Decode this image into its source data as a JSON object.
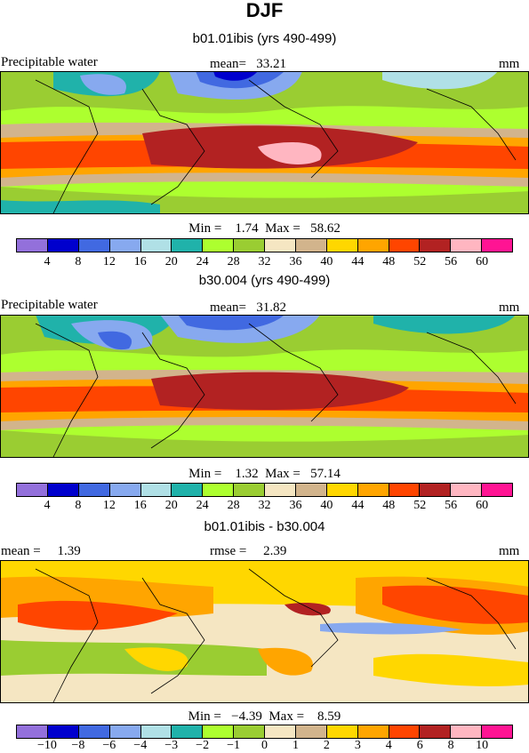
{
  "title": "DJF",
  "variable_label": "Precipitable water",
  "units": "mm",
  "icons": {
    "map_projection": "world-cylindrical-map",
    "coastline": "coastline-outline"
  },
  "panels": [
    {
      "title": "b01.01ibis (yrs 490-499)",
      "left_label": "Precipitable water",
      "center_label": "mean=   33.21",
      "right_label": "mm",
      "stats": "Min =    1.74  Max =   58.62",
      "colorbar": {
        "colors": [
          "#9370db",
          "#0000cd",
          "#4169e1",
          "#87a9ef",
          "#b0e0e6",
          "#20b2aa",
          "#adff2f",
          "#9acd32",
          "#f5e6c2",
          "#d2b48c",
          "#ffd700",
          "#ffa500",
          "#ff4500",
          "#b22222",
          "#ffb6c1",
          "#ff1493"
        ],
        "ticks": [
          "4",
          "8",
          "12",
          "16",
          "20",
          "24",
          "28",
          "32",
          "36",
          "40",
          "44",
          "48",
          "52",
          "56",
          "60"
        ]
      }
    },
    {
      "title": "b30.004 (yrs 490-499)",
      "left_label": "Precipitable water",
      "center_label": "mean=   31.82",
      "right_label": "mm",
      "stats": "Min =    1.32  Max =   57.14",
      "colorbar": {
        "colors": [
          "#9370db",
          "#0000cd",
          "#4169e1",
          "#87a9ef",
          "#b0e0e6",
          "#20b2aa",
          "#adff2f",
          "#9acd32",
          "#f5e6c2",
          "#d2b48c",
          "#ffd700",
          "#ffa500",
          "#ff4500",
          "#b22222",
          "#ffb6c1",
          "#ff1493"
        ],
        "ticks": [
          "4",
          "8",
          "12",
          "16",
          "20",
          "24",
          "28",
          "32",
          "36",
          "40",
          "44",
          "48",
          "52",
          "56",
          "60"
        ]
      }
    },
    {
      "title": "b01.01ibis - b30.004",
      "left_label": "mean =     1.39",
      "center_label": "rmse =     2.39",
      "right_label": "mm",
      "stats": "Min =   −4.39  Max =    8.59",
      "colorbar": {
        "colors": [
          "#9370db",
          "#0000cd",
          "#4169e1",
          "#87a9ef",
          "#b0e0e6",
          "#20b2aa",
          "#adff2f",
          "#9acd32",
          "#f5e6c2",
          "#d2b48c",
          "#ffd700",
          "#ffa500",
          "#ff4500",
          "#b22222",
          "#ffb6c1",
          "#ff1493"
        ],
        "ticks": [
          "−10",
          "−8",
          "−6",
          "−4",
          "−3",
          "−2",
          "−1",
          "0",
          "1",
          "2",
          "3",
          "4",
          "6",
          "8",
          "10"
        ]
      }
    }
  ]
}
